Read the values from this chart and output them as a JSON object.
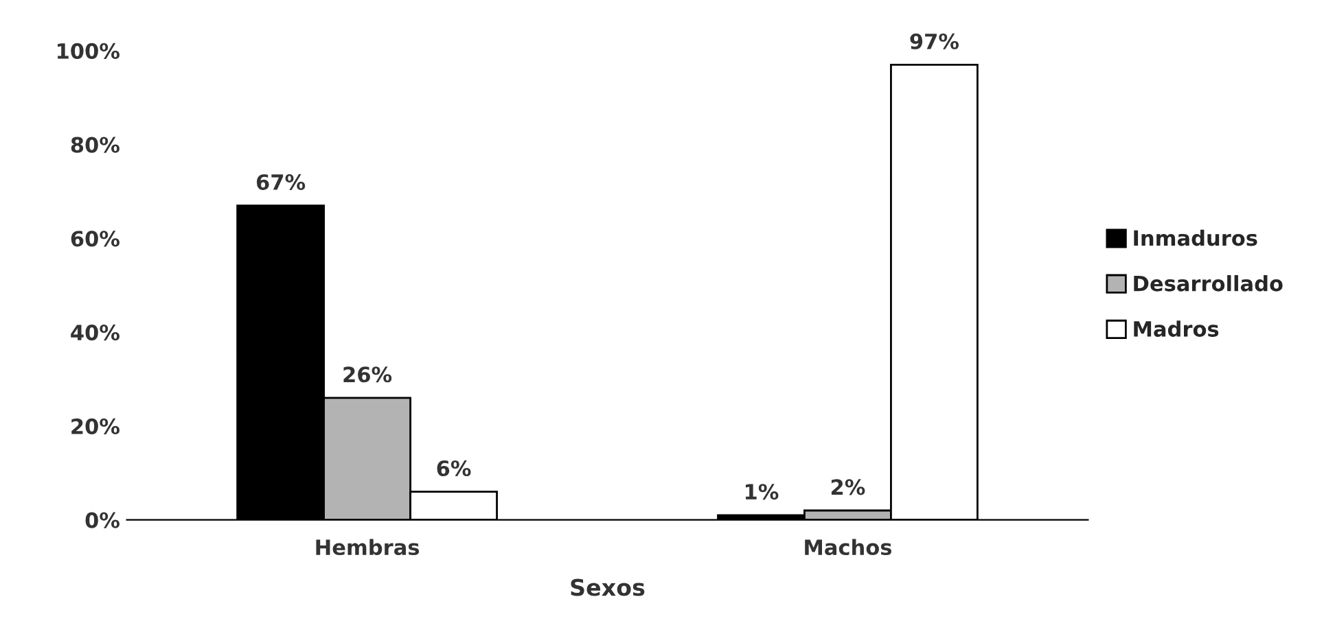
{
  "chart_data": {
    "type": "bar",
    "xlabel": "Sexos",
    "categories": [
      "Hembras",
      "Machos"
    ],
    "series": [
      {
        "name": "Inmaduros",
        "color": "#000000",
        "values": [
          67,
          1
        ],
        "value_labels": [
          "67%",
          "1%"
        ]
      },
      {
        "name": "Desarrollado",
        "color": "#b3b3b3",
        "values": [
          26,
          2
        ],
        "value_labels": [
          "26%",
          "2%"
        ]
      },
      {
        "name": "Madros",
        "color": "#ffffff",
        "values": [
          6,
          97
        ],
        "value_labels": [
          "6%",
          "97%"
        ]
      }
    ],
    "ylim": [
      0,
      100
    ],
    "yticks": [
      {
        "value": 0,
        "label": "0%"
      },
      {
        "value": 20,
        "label": "20%"
      },
      {
        "value": 40,
        "label": "40%"
      },
      {
        "value": 60,
        "label": "60%"
      },
      {
        "value": 80,
        "label": "80%"
      },
      {
        "value": 100,
        "label": "100%"
      }
    ],
    "grid": false,
    "legend": "right"
  }
}
